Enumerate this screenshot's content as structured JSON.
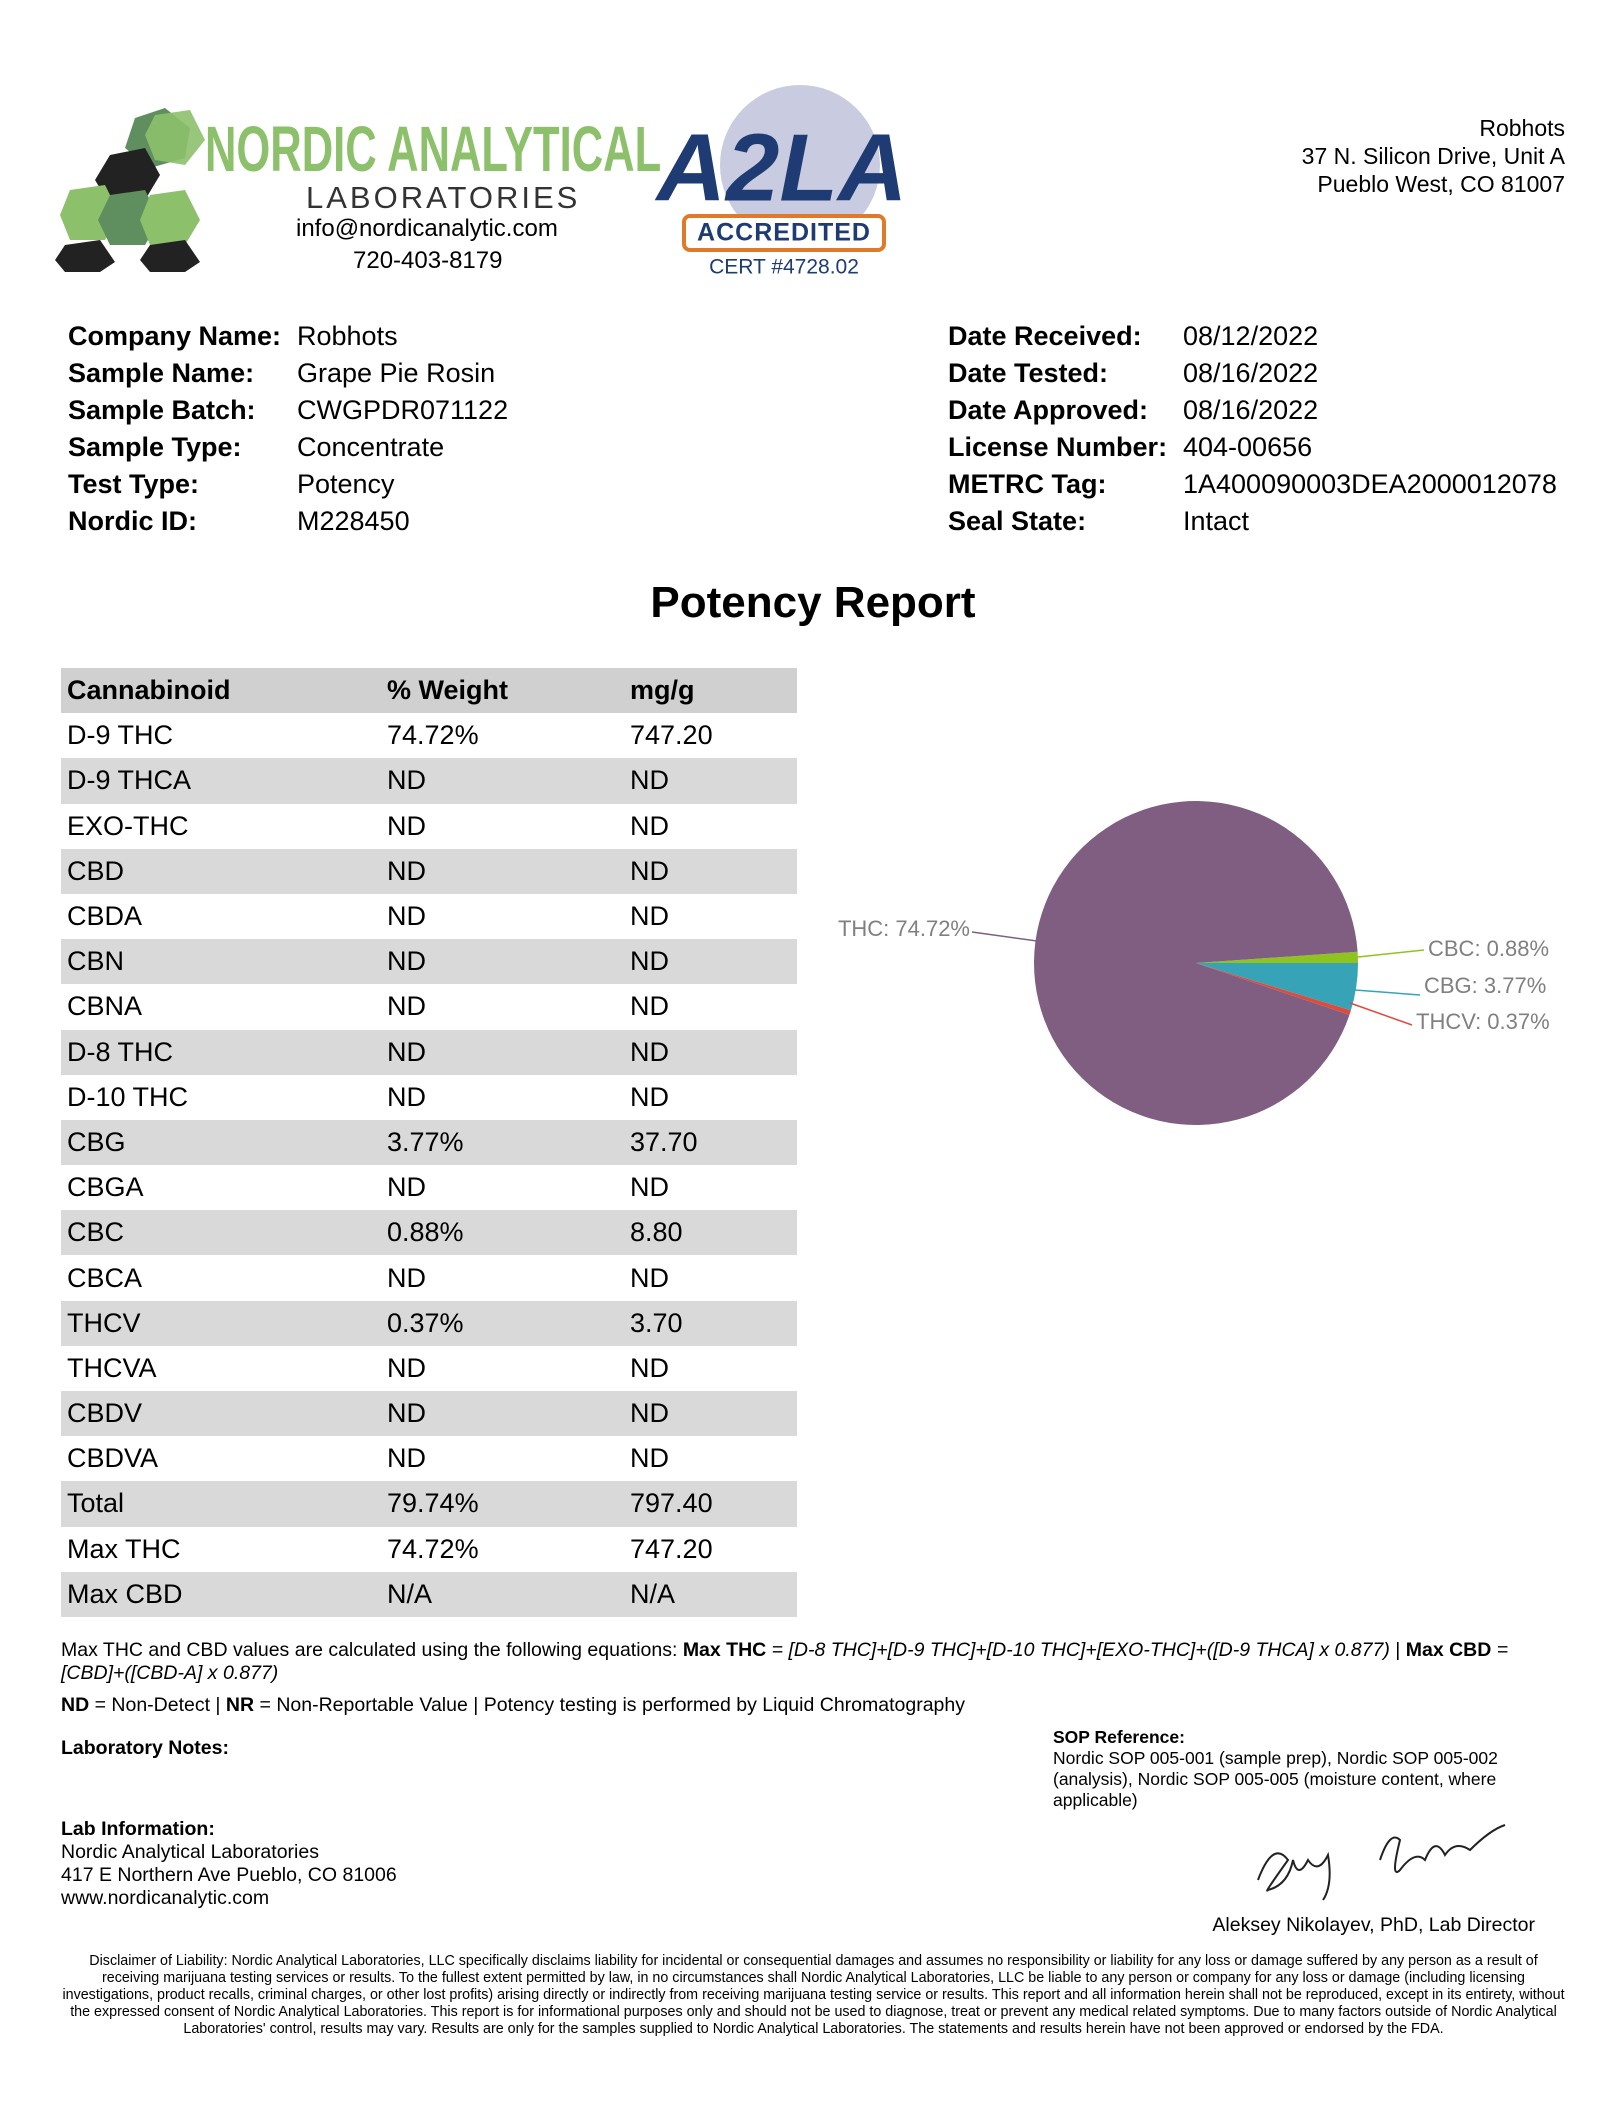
{
  "logo": {
    "name": "NORDIC ANALYTICAL",
    "sub": "LABORATORIES",
    "email": "info@nordicanalytic.com",
    "phone": "720-403-8179"
  },
  "accreditation": {
    "mark": "A2LA",
    "badge": "ACCREDITED",
    "cert": "CERT #4728.02"
  },
  "client_address": [
    "Robhots",
    "37 N. Silicon Drive, Unit A",
    "Pueblo West, CO 81007"
  ],
  "info_left": [
    [
      "Company Name:",
      "Robhots"
    ],
    [
      "Sample Name:",
      "Grape Pie Rosin"
    ],
    [
      "Sample Batch:",
      "CWGPDR071122"
    ],
    [
      "Sample Type:",
      "Concentrate"
    ],
    [
      "Test Type:",
      "Potency"
    ],
    [
      "Nordic ID:",
      "M228450"
    ]
  ],
  "info_right": [
    [
      "Date Received:",
      "08/12/2022"
    ],
    [
      "Date Tested:",
      "08/16/2022"
    ],
    [
      "Date Approved:",
      "08/16/2022"
    ],
    [
      "License Number:",
      "404-00656"
    ],
    [
      "METRC Tag:",
      "1A400090003DEA2000012078"
    ],
    [
      "Seal State:",
      "Intact"
    ]
  ],
  "title": "Potency Report",
  "table": {
    "header": [
      "Cannabinoid",
      "% Weight",
      "mg/g"
    ],
    "rows": [
      [
        "D-9 THC",
        "74.72%",
        "747.20"
      ],
      [
        "D-9 THCA",
        "ND",
        "ND"
      ],
      [
        "EXO-THC",
        "ND",
        "ND"
      ],
      [
        "CBD",
        "ND",
        "ND"
      ],
      [
        "CBDA",
        "ND",
        "ND"
      ],
      [
        "CBN",
        "ND",
        "ND"
      ],
      [
        "CBNA",
        "ND",
        "ND"
      ],
      [
        "D-8 THC",
        "ND",
        "ND"
      ],
      [
        "D-10 THC",
        "ND",
        "ND"
      ],
      [
        "CBG",
        "3.77%",
        "37.70"
      ],
      [
        "CBGA",
        "ND",
        "ND"
      ],
      [
        "CBC",
        "0.88%",
        "8.80"
      ],
      [
        "CBCA",
        "ND",
        "ND"
      ],
      [
        "THCV",
        "0.37%",
        "3.70"
      ],
      [
        "THCVA",
        "ND",
        "ND"
      ],
      [
        "CBDV",
        "ND",
        "ND"
      ],
      [
        "CBDVA",
        "ND",
        "ND"
      ],
      [
        "Total",
        "79.74%",
        "797.40"
      ],
      [
        "Max THC",
        "74.72%",
        "747.20"
      ],
      [
        "Max CBD",
        "N/A",
        "N/A"
      ]
    ]
  },
  "chart_data": {
    "type": "pie",
    "values": [
      0.88,
      3.77,
      0.37,
      74.72
    ],
    "value_labels": [
      "CBC: 0.88%",
      "CBG: 3.77%",
      "THCV: 0.37%",
      "THC: 74.72%"
    ],
    "colors": [
      "#8fc31f",
      "#37a3b6",
      "#e04a3c",
      "#7f5e82"
    ]
  },
  "notes": {
    "equation": [
      "Max THC and CBD values are calculated using the following equations: ",
      "Max THC",
      " = [D-8 THC]+[D-9 THC]+[D-10 THC]+[EXO-THC]+([D-9 THCA] x 0.877)",
      " | ",
      "Max CBD",
      " = [CBD]+([CBD-A] x 0.877)"
    ],
    "legend": [
      "ND",
      " = Non-Detect | ",
      "NR",
      " = Non-Reportable Value | Potency testing is performed by Liquid Chromatography"
    ],
    "lab_notes": "Laboratory Notes:",
    "sop_title": "SOP Reference:",
    "sop_text": "Nordic SOP 005-001 (sample prep), Nordic SOP 005-002 (analysis), Nordic SOP 005-005 (moisture content, where applicable)",
    "lab_info_title": "Lab Information:",
    "lab_info": [
      "Nordic Analytical Laboratories",
      "417 E Northern Ave Pueblo, CO 81006",
      "www.nordicanalytic.com"
    ],
    "signer": "Aleksey Nikolayev, PhD, Lab Director",
    "disclaimer": "Disclaimer of Liability: Nordic Analytical Laboratories, LLC specifically disclaims liability for incidental or consequential damages and assumes no responsibility or liability for any loss or damage suffered by any person as a result of receiving marijuana testing services or results. To the fullest extent permitted by law, in no circumstances shall Nordic Analytical Laboratories, LLC be liable to any person or company for any loss or damage (including licensing investigations, product recalls, criminal charges, or other lost profits) arising directly or indirectly from receiving marijuana testing service or results. This report and all information herein shall not be reproduced, except in its entirety, without the expressed consent of Nordic Analytical Laboratories. This report is for informational purposes only and should not be used to diagnose, treat or prevent any medical related symptoms. Due to many factors outside of Nordic Analytical Laboratories' control, results may vary. Results are only for the samples supplied to Nordic Analytical Laboratories. The statements and results herein have not been approved or endorsed by the FDA."
  }
}
